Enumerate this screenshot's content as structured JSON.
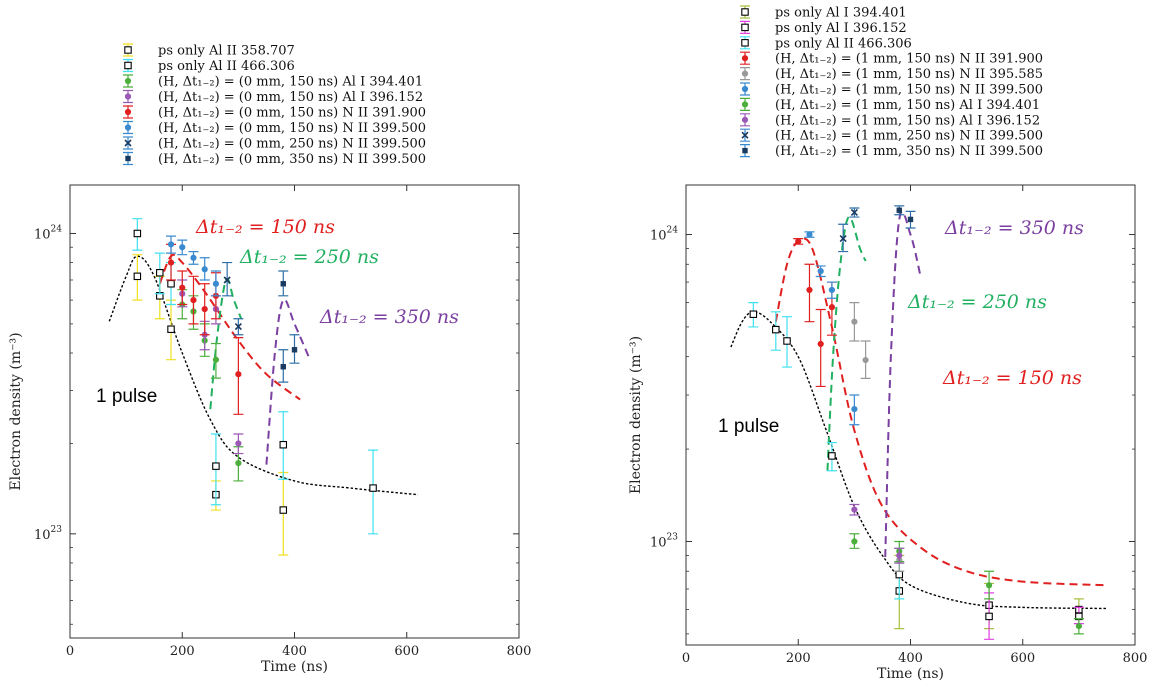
{
  "chart_data": [
    {
      "type": "scatter",
      "xlabel": "Time (ns)",
      "ylabel": "Electron density (m⁻³)",
      "xlim": [
        0,
        800
      ],
      "ylim": [
        4.5e+22,
        1.45e+24
      ],
      "yscale": "log",
      "xticks": [
        "0",
        "200",
        "400",
        "600",
        "800"
      ],
      "yticks": [
        {
          "value": 1e+23,
          "base": "10",
          "exp": "23"
        },
        {
          "value": 1e+24,
          "base": "10",
          "exp": "24"
        }
      ],
      "legend": [
        {
          "label": "ps only Al II 358.707",
          "color": "#f0e020",
          "marker": "square"
        },
        {
          "label": "ps only Al II 466.306",
          "color": "#40e0f0",
          "marker": "square"
        },
        {
          "label": "(H, Δt₁₋₂) = (0 mm, 150 ns) Al I 394.401",
          "color": "#4caf3c",
          "marker": "circle"
        },
        {
          "label": "(H, Δt₁₋₂) = (0 mm, 150 ns) Al I 396.152",
          "color": "#9b59b6",
          "marker": "circle"
        },
        {
          "label": "(H, Δt₁₋₂) = (0 mm, 150 ns) N II 391.900",
          "color": "#e02020",
          "marker": "circle"
        },
        {
          "label": "(H, Δt₁₋₂) = (0 mm, 150 ns) N II 399.500",
          "color": "#3a8ad0",
          "marker": "circle"
        },
        {
          "label": "(H, Δt₁₋₂) = (0 mm, 250 ns) N II 399.500",
          "color": "#3a8ad0",
          "marker": "x"
        },
        {
          "label": "(H, Δt₁₋₂) = (0 mm, 350 ns) N II 399.500",
          "color": "#3a8ad0",
          "marker": "square-dot"
        }
      ],
      "series": [
        {
          "color": "#f0e020",
          "marker": "square",
          "points": [
            [
              120,
              7.2e+23,
              6e+23,
              8.5e+23
            ],
            [
              160,
              6.2e+23,
              5.2e+23,
              7.2e+23
            ],
            [
              180,
              4.8e+23,
              3.8e+23,
              6e+23
            ],
            [
              260,
              1.35e+23,
              1.2e+23,
              1.5e+23
            ],
            [
              380,
              1.2e+23,
              8.5e+22,
              1.6e+23
            ]
          ]
        },
        {
          "color": "#40e0f0",
          "marker": "square",
          "points": [
            [
              120,
              1e+24,
              8.8e+23,
              1.12e+24
            ],
            [
              160,
              7.4e+23,
              6.3e+23,
              8.6e+23
            ],
            [
              180,
              6.8e+23,
              5.8e+23,
              8e+23
            ],
            [
              260,
              1.68e+23,
              1.25e+23,
              2.15e+23
            ],
            [
              380,
              1.98e+23,
              1.52e+23,
              2.55e+23
            ],
            [
              540,
              1.42e+23,
              1e+23,
              1.9e+23
            ]
          ]
        },
        {
          "color": "#4caf3c",
          "marker": "circle",
          "points": [
            [
              200,
              5.8e+23,
              5.2e+23,
              6.5e+23
            ],
            [
              220,
              5.5e+23,
              4.8e+23,
              6.2e+23
            ],
            [
              240,
              4.4e+23,
              3.9e+23,
              5e+23
            ],
            [
              260,
              3.8e+23,
              3.3e+23,
              4.3e+23
            ],
            [
              300,
              1.72e+23,
              1.5e+23,
              1.95e+23
            ]
          ]
        },
        {
          "color": "#9b59b6",
          "marker": "circle",
          "points": [
            [
              200,
              6.3e+23,
              5.7e+23,
              7e+23
            ],
            [
              240,
              4.6e+23,
              4.1e+23,
              5.1e+23
            ],
            [
              260,
              5.6e+23,
              5e+23,
              6.2e+23
            ],
            [
              300,
              2e+23,
              1.85e+23,
              2.15e+23
            ]
          ]
        },
        {
          "color": "#e02020",
          "marker": "circle",
          "points": [
            [
              180,
              8e+23,
              7e+23,
              9.2e+23
            ],
            [
              200,
              6.6e+23,
              5.8e+23,
              7.5e+23
            ],
            [
              220,
              6e+23,
              5e+23,
              7.2e+23
            ],
            [
              240,
              5.6e+23,
              4.6e+23,
              6.8e+23
            ],
            [
              260,
              6.2e+23,
              5.2e+23,
              7.4e+23
            ],
            [
              300,
              3.4e+23,
              2.5e+23,
              4.5e+23
            ]
          ]
        },
        {
          "color": "#3a8ad0",
          "marker": "circle",
          "points": [
            [
              180,
              9.2e+23,
              8.6e+23,
              9.8e+23
            ],
            [
              200,
              9e+23,
              8.5e+23,
              9.5e+23
            ],
            [
              220,
              8.3e+23,
              7.9e+23,
              8.7e+23
            ],
            [
              240,
              7.6e+23,
              7e+23,
              8.3e+23
            ],
            [
              260,
              6.8e+23,
              6.2e+23,
              7.5e+23
            ]
          ]
        },
        {
          "color": "#2f6fa8",
          "marker": "x",
          "points": [
            [
              280,
              7e+23,
              6.2e+23,
              8e+23
            ],
            [
              300,
              4.9e+23,
              4.6e+23,
              5.2e+23
            ]
          ]
        },
        {
          "color": "#2f6fa8",
          "marker": "square-dot",
          "points": [
            [
              380,
              6.8e+23,
              6.2e+23,
              7.5e+23
            ],
            [
              380,
              3.6e+23,
              3.2e+23,
              4.1e+23
            ],
            [
              400,
              4.1e+23,
              3.7e+23,
              4.6e+23
            ]
          ]
        }
      ],
      "fits": [
        {
          "color": "#000000",
          "style": "dotted",
          "points": [
            [
              70,
              5.1e+23
            ],
            [
              100,
              7.2e+23
            ],
            [
              120,
              8.4e+23
            ],
            [
              150,
              7.2e+23
            ],
            [
              200,
              4e+23
            ],
            [
              250,
              2.4e+23
            ],
            [
              300,
              1.8e+23
            ],
            [
              400,
              1.5e+23
            ],
            [
              500,
              1.42e+23
            ],
            [
              620,
              1.35e+23
            ]
          ]
        },
        {
          "color": "#e02020",
          "style": "dashed",
          "points": [
            [
              160,
              6.8e+23
            ],
            [
              180,
              8.4e+23
            ],
            [
              200,
              8e+23
            ],
            [
              240,
              6.4e+23
            ],
            [
              300,
              4.4e+23
            ],
            [
              350,
              3.4e+23
            ],
            [
              410,
              2.8e+23
            ]
          ]
        },
        {
          "color": "#20b060",
          "style": "dashed",
          "points": [
            [
              250,
              2.6e+23
            ],
            [
              262,
              4.5e+23
            ],
            [
              278,
              7e+23
            ],
            [
              292,
              6e+23
            ],
            [
              305,
              5.2e+23
            ]
          ]
        },
        {
          "color": "#7a3fa0",
          "style": "dashed",
          "points": [
            [
              350,
              1.7e+23
            ],
            [
              365,
              4e+23
            ],
            [
              380,
              6e+23
            ],
            [
              400,
              5e+23
            ],
            [
              425,
              3.9e+23
            ]
          ]
        }
      ],
      "annotations": [
        {
          "label": "1 pulse",
          "color": "#000000"
        },
        {
          "label": "Δt₁₋₂ = 150 ns",
          "color": "#e02020"
        },
        {
          "label": "Δt₁₋₂ = 250 ns",
          "color": "#20b060"
        },
        {
          "label": "Δt₁₋₂ = 350 ns",
          "color": "#7a3fa0"
        }
      ]
    },
    {
      "type": "scatter",
      "xlabel": "Time (ns)",
      "ylabel": "Electron density (m⁻³)",
      "xlim": [
        0,
        800
      ],
      "ylim": [
        4.6e+22,
        1.45e+24
      ],
      "yscale": "log",
      "xticks": [
        "0",
        "200",
        "400",
        "600",
        "800"
      ],
      "yticks": [
        {
          "value": 1e+23,
          "base": "10",
          "exp": "23"
        },
        {
          "value": 1e+24,
          "base": "10",
          "exp": "24"
        }
      ],
      "legend": [
        {
          "label": "ps only Al I 394.401",
          "color": "#a8c040",
          "marker": "square"
        },
        {
          "label": "ps only Al I 396.152",
          "color": "#e040e0",
          "marker": "square"
        },
        {
          "label": "ps only Al II 466.306",
          "color": "#40e0f0",
          "marker": "square"
        },
        {
          "label": "(H, Δt₁₋₂) = (1 mm, 150 ns) N II 391.900",
          "color": "#e02020",
          "marker": "circle"
        },
        {
          "label": "(H, Δt₁₋₂) = (1 mm, 150 ns) N II 395.585",
          "color": "#999999",
          "marker": "circle"
        },
        {
          "label": "(H, Δt₁₋₂) = (1 mm, 150 ns) N II 399.500",
          "color": "#3a8ad0",
          "marker": "circle"
        },
        {
          "label": "(H, Δt₁₋₂) = (1 mm, 150 ns) Al I 394.401",
          "color": "#4caf3c",
          "marker": "circle"
        },
        {
          "label": "(H, Δt₁₋₂) = (1 mm, 150 ns) Al I 396.152",
          "color": "#9b59b6",
          "marker": "circle"
        },
        {
          "label": "(H, Δt₁₋₂) = (1 mm, 250 ns) N II 399.500",
          "color": "#3a8ad0",
          "marker": "x"
        },
        {
          "label": "(H, Δt₁₋₂) = (1 mm, 350 ns) N II 399.500",
          "color": "#3a8ad0",
          "marker": "square-dot"
        }
      ],
      "series": [
        {
          "color": "#a8c040",
          "marker": "square",
          "points": [
            [
              380,
              6.9e+22,
              5.2e+22,
              9e+22
            ],
            [
              540,
              6.2e+22,
              5.2e+22,
              7.3e+22
            ],
            [
              700,
              6e+22,
              5.6e+22,
              6.5e+22
            ]
          ]
        },
        {
          "color": "#e040e0",
          "marker": "square",
          "points": [
            [
              540,
              5.7e+22,
              4.8e+22,
              6.8e+22
            ],
            [
              700,
              5.7e+22,
              5.4e+22,
              6.1e+22
            ]
          ]
        },
        {
          "color": "#40e0f0",
          "marker": "square",
          "points": [
            [
              120,
              5.5e+23,
              5e+23,
              6e+23
            ],
            [
              160,
              4.9e+23,
              4.2e+23,
              5.6e+23
            ],
            [
              180,
              4.5e+23,
              3.7e+23,
              5.4e+23
            ],
            [
              260,
              1.9e+23,
              1.7e+23,
              2.1e+23
            ],
            [
              380,
              7.8e+22,
              6.5e+22,
              9.5e+22
            ]
          ]
        },
        {
          "color": "#e02020",
          "marker": "circle",
          "points": [
            [
              200,
              9.5e+23,
              9.3e+23,
              9.7e+23
            ],
            [
              220,
              6.6e+23,
              5.2e+23,
              8e+23
            ],
            [
              240,
              4.4e+23,
              3.2e+23,
              5.7e+23
            ],
            [
              260,
              5.8e+23,
              4.7e+23,
              7e+23
            ]
          ]
        },
        {
          "color": "#999999",
          "marker": "circle",
          "points": [
            [
              300,
              5.2e+23,
              4.5e+23,
              6e+23
            ],
            [
              320,
              3.9e+23,
              3.4e+23,
              4.5e+23
            ],
            [
              380,
              8.7e+22,
              8e+22,
              9.5e+22
            ]
          ]
        },
        {
          "color": "#3a8ad0",
          "marker": "circle",
          "points": [
            [
              220,
              1e+24,
              9.8e+23,
              1.02e+24
            ],
            [
              240,
              7.6e+23,
              7.3e+23,
              7.9e+23
            ],
            [
              260,
              6.6e+23,
              6.2e+23,
              7e+23
            ],
            [
              300,
              2.7e+23,
              2.4e+23,
              3e+23
            ]
          ]
        },
        {
          "color": "#4caf3c",
          "marker": "circle",
          "points": [
            [
              300,
              1e+23,
              9.5e+22,
              1.06e+23
            ],
            [
              380,
              9.3e+22,
              8.6e+22,
              1e+23
            ],
            [
              540,
              7.2e+22,
              6.5e+22,
              8e+22
            ],
            [
              700,
              5.3e+22,
              5e+22,
              5.6e+22
            ]
          ]
        },
        {
          "color": "#9b59b6",
          "marker": "circle",
          "points": [
            [
              300,
              1.27e+23,
              1.22e+23,
              1.32e+23
            ],
            [
              380,
              9e+22,
              8.5e+22,
              9.5e+22
            ]
          ]
        },
        {
          "color": "#2f6fa8",
          "marker": "x",
          "points": [
            [
              280,
              9.7e+23,
              8.8e+23,
              1.08e+24
            ],
            [
              300,
              1.18e+24,
              1.14e+24,
              1.22e+24
            ]
          ]
        },
        {
          "color": "#2f6fa8",
          "marker": "square-dot",
          "points": [
            [
              380,
              1.2e+24,
              1.16e+24,
              1.24e+24
            ],
            [
              400,
              1.12e+24,
              1.05e+24,
              1.19e+24
            ]
          ]
        }
      ],
      "fits": [
        {
          "color": "#000000",
          "style": "dotted",
          "points": [
            [
              80,
              4.3e+23
            ],
            [
              100,
              5.2e+23
            ],
            [
              120,
              5.6e+23
            ],
            [
              150,
              5.2e+23
            ],
            [
              200,
              4e+23
            ],
            [
              250,
              2.3e+23
            ],
            [
              300,
              1.3e+23
            ],
            [
              350,
              9e+22
            ],
            [
              400,
              7.2e+22
            ],
            [
              500,
              6.3e+22
            ],
            [
              600,
              6.1e+22
            ],
            [
              750,
              6.05e+22
            ]
          ]
        },
        {
          "color": "#e02020",
          "style": "dashed",
          "points": [
            [
              160,
              5.2e+23
            ],
            [
              180,
              8e+23
            ],
            [
              200,
              9.5e+23
            ],
            [
              225,
              9e+23
            ],
            [
              260,
              5e+23
            ],
            [
              300,
              2.3e+23
            ],
            [
              350,
              1.3e+23
            ],
            [
              420,
              9.5e+22
            ],
            [
              500,
              8e+22
            ],
            [
              600,
              7.4e+22
            ],
            [
              750,
              7.2e+22
            ]
          ]
        },
        {
          "color": "#20b060",
          "style": "dashed",
          "points": [
            [
              252,
              1.7e+23
            ],
            [
              262,
              4e+23
            ],
            [
              275,
              8e+23
            ],
            [
              290,
              1.14e+24
            ],
            [
              310,
              9e+23
            ],
            [
              320,
              8.2e+23
            ]
          ]
        },
        {
          "color": "#7a3fa0",
          "style": "dashed",
          "points": [
            [
              355,
              8.9e+22
            ],
            [
              365,
              4e+23
            ],
            [
              380,
              1.12e+24
            ],
            [
              400,
              1e+24
            ],
            [
              418,
              7.3e+23
            ]
          ]
        }
      ],
      "annotations": [
        {
          "label": "1 pulse",
          "color": "#000000"
        },
        {
          "label": "Δt₁₋₂ = 150 ns",
          "color": "#e02020"
        },
        {
          "label": "Δt₁₋₂ = 250 ns",
          "color": "#20b060"
        },
        {
          "label": "Δt₁₋₂ = 350 ns",
          "color": "#7a3fa0"
        }
      ]
    }
  ]
}
